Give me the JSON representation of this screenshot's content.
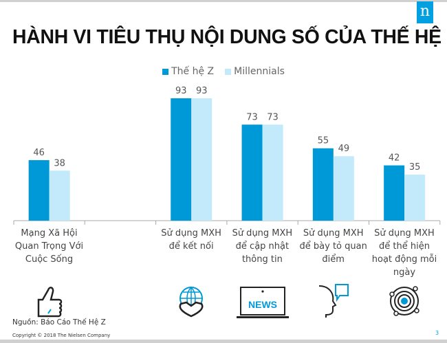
{
  "slide": {
    "title": "HÀNH VI TIÊU THỤ NỘI DUNG SỐ CỦA THẾ HỆ Z",
    "logo_text": "n",
    "source": "Nguồn: Báo Cáo Thế Hệ Z",
    "copyright": "Copyright © 2018 The Nielsen Company",
    "page_number": "3"
  },
  "icons": [
    "thumbs-up-icon",
    "",
    "globe-handshake-icon",
    "news-laptop-icon",
    "head-speech-bubble-icon",
    "orbit-icon"
  ],
  "chart_data": {
    "type": "bar",
    "title": "",
    "categories": [
      "Mạng Xã Hội Quan Trọng Với Cuộc Sống",
      "",
      "Sử dụng MXH để kết nối",
      "Sử dụng MXH để cập nhật thông tin",
      "Sử dụng MXH để bày tỏ quan điểm",
      "Sử dụng MXH để thể hiện hoạt động mỗi ngày"
    ],
    "series": [
      {
        "name": "Thế hệ Z",
        "color": "#0099d8",
        "values": [
          46,
          null,
          93,
          73,
          55,
          42
        ]
      },
      {
        "name": "Millennials",
        "color": "#c3eafb",
        "values": [
          38,
          null,
          93,
          73,
          49,
          35
        ]
      }
    ],
    "ylim": [
      0,
      100
    ],
    "grid": false,
    "legend": "top-center",
    "data_labels": true
  }
}
